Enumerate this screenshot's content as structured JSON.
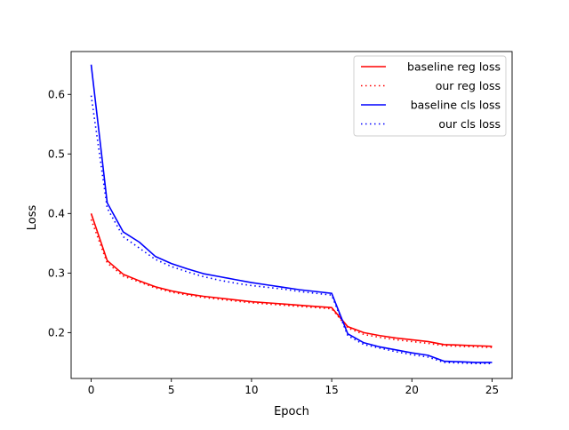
{
  "chart_data": {
    "type": "line",
    "title": "",
    "xlabel": "Epoch",
    "ylabel": "Loss",
    "xlim": [
      -1.25,
      26.25
    ],
    "ylim": [
      0.123,
      0.672
    ],
    "xticks": [
      0,
      5,
      10,
      15,
      20,
      25
    ],
    "yticks": [
      0.2,
      0.3,
      0.4,
      0.5,
      0.6
    ],
    "xtick_labels": [
      "0",
      "5",
      "10",
      "15",
      "20",
      "25"
    ],
    "ytick_labels": [
      "0.2",
      "0.3",
      "0.4",
      "0.5",
      "0.6"
    ],
    "grid": false,
    "legend_position": "top-right",
    "x": [
      0,
      1,
      2,
      3,
      4,
      5,
      6,
      7,
      8,
      9,
      10,
      11,
      12,
      13,
      14,
      15,
      16,
      17,
      18,
      19,
      20,
      21,
      22,
      23,
      24,
      25
    ],
    "series": [
      {
        "name": "baseline reg loss",
        "color": "#ff0000",
        "linestyle": "solid",
        "values": [
          0.4,
          0.321,
          0.298,
          0.287,
          0.277,
          0.27,
          0.265,
          0.261,
          0.258,
          0.255,
          0.252,
          0.25,
          0.248,
          0.246,
          0.244,
          0.242,
          0.21,
          0.2,
          0.195,
          0.191,
          0.188,
          0.185,
          0.18,
          0.179,
          0.178,
          0.177
        ]
      },
      {
        "name": "our reg loss",
        "color": "#ff0000",
        "linestyle": "dotted",
        "values": [
          0.39,
          0.317,
          0.295,
          0.285,
          0.275,
          0.268,
          0.263,
          0.259,
          0.256,
          0.253,
          0.25,
          0.248,
          0.246,
          0.244,
          0.242,
          0.24,
          0.208,
          0.197,
          0.192,
          0.188,
          0.185,
          0.182,
          0.178,
          0.177,
          0.176,
          0.175
        ]
      },
      {
        "name": "baseline cls loss",
        "color": "#0000ff",
        "linestyle": "solid",
        "values": [
          0.65,
          0.418,
          0.369,
          0.352,
          0.328,
          0.316,
          0.307,
          0.299,
          0.294,
          0.289,
          0.284,
          0.28,
          0.276,
          0.272,
          0.269,
          0.266,
          0.198,
          0.183,
          0.176,
          0.171,
          0.166,
          0.162,
          0.152,
          0.151,
          0.15,
          0.15
        ]
      },
      {
        "name": "our cls loss",
        "color": "#0000ff",
        "linestyle": "dotted",
        "values": [
          0.598,
          0.409,
          0.361,
          0.342,
          0.323,
          0.311,
          0.302,
          0.294,
          0.288,
          0.283,
          0.279,
          0.276,
          0.273,
          0.269,
          0.266,
          0.263,
          0.195,
          0.18,
          0.174,
          0.168,
          0.163,
          0.159,
          0.15,
          0.149,
          0.148,
          0.148
        ]
      }
    ]
  }
}
